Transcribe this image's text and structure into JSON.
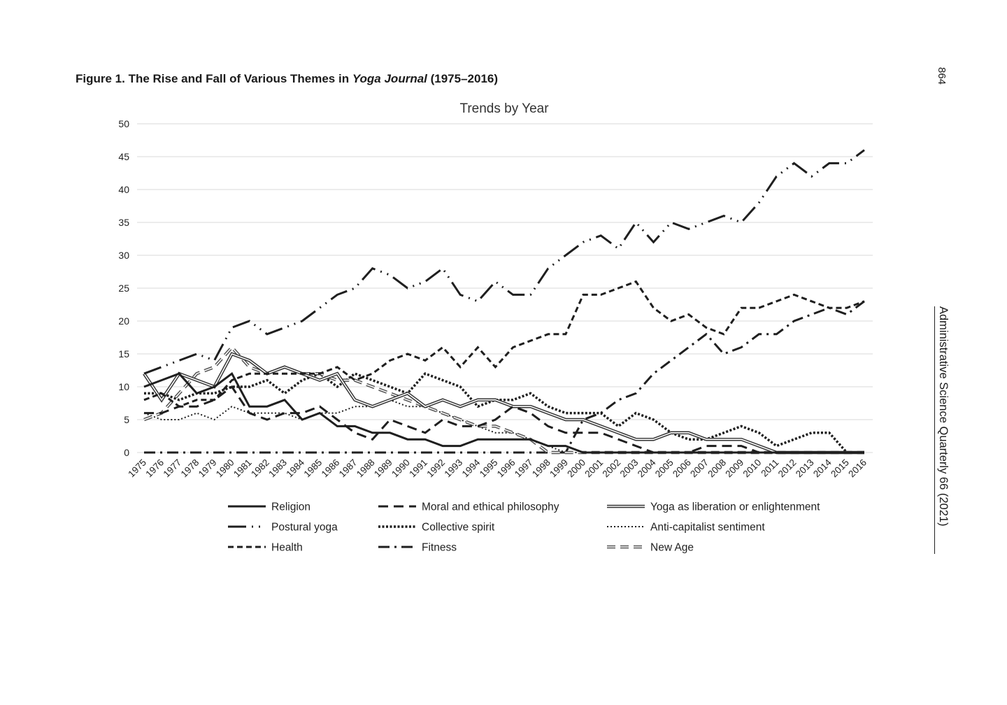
{
  "caption": {
    "prefix": "Figure 1.  The Rise and Fall of Various Themes in ",
    "italic": "Yoga Journal",
    "suffix": " (1975–2016)"
  },
  "side": {
    "page_number": "864",
    "journal": "Administrative Science Quarterly 66 (2021)"
  },
  "chart_data": {
    "type": "line",
    "title": "Trends by Year",
    "xlabel": "",
    "ylabel": "",
    "ylim": [
      0,
      50
    ],
    "yticks": [
      0,
      5,
      10,
      15,
      20,
      25,
      30,
      35,
      40,
      45,
      50
    ],
    "grid": "horizontal",
    "legend_position": "bottom",
    "x": [
      "1975",
      "1976",
      "1977",
      "1978",
      "1979",
      "1980",
      "1981",
      "1982",
      "1983",
      "1984",
      "1985",
      "1986",
      "1987",
      "1988",
      "1989",
      "1990",
      "1991",
      "1992",
      "1993",
      "1994",
      "1995",
      "1996",
      "1997",
      "1998",
      "1999",
      "2000",
      "2001",
      "2002",
      "2003",
      "2004",
      "2005",
      "2006",
      "2007",
      "2008",
      "2009",
      "2010",
      "2011",
      "2012",
      "2013",
      "2014",
      "2015",
      "2016"
    ],
    "series": [
      {
        "name": "Religion",
        "style": "solid",
        "values": [
          10,
          11,
          12,
          9,
          10,
          12,
          7,
          7,
          8,
          5,
          6,
          4,
          4,
          3,
          3,
          2,
          2,
          1,
          1,
          2,
          2,
          2,
          2,
          1,
          1,
          0,
          0,
          0,
          0,
          0,
          0,
          0,
          0,
          0,
          0,
          0,
          0,
          0,
          0,
          0,
          0,
          0
        ]
      },
      {
        "name": "Moral and ethical philosophy",
        "style": "dashed",
        "values": [
          6,
          6,
          7,
          7,
          8,
          10,
          6,
          5,
          6,
          6,
          7,
          5,
          3,
          2,
          5,
          4,
          3,
          5,
          4,
          4,
          5,
          7,
          6,
          4,
          3,
          3,
          3,
          2,
          1,
          0,
          0,
          0,
          1,
          1,
          1,
          0,
          0,
          0,
          0,
          0,
          0,
          0
        ]
      },
      {
        "name": "Yoga as liberation or enlightenment",
        "style": "double",
        "values": [
          12,
          8,
          12,
          11,
          10,
          15,
          14,
          12,
          13,
          12,
          11,
          12,
          8,
          7,
          8,
          9,
          7,
          8,
          7,
          8,
          8,
          7,
          7,
          6,
          5,
          5,
          4,
          3,
          2,
          2,
          3,
          3,
          2,
          2,
          2,
          1,
          0,
          0,
          0,
          0,
          0,
          0
        ]
      },
      {
        "name": "Postural yoga",
        "style": "dashdotdot",
        "values": [
          12,
          13,
          14,
          15,
          14,
          19,
          20,
          18,
          19,
          20,
          22,
          24,
          25,
          28,
          27,
          25,
          26,
          28,
          24,
          23,
          26,
          24,
          24,
          28,
          30,
          32,
          33,
          31,
          35,
          32,
          35,
          34,
          35,
          36,
          35,
          38,
          42,
          44,
          42,
          44,
          44,
          46
        ]
      },
      {
        "name": "Collective spirit",
        "style": "dotted-bold",
        "values": [
          9,
          9,
          8,
          9,
          9,
          10,
          10,
          11,
          9,
          11,
          12,
          10,
          12,
          11,
          10,
          9,
          12,
          11,
          10,
          7,
          8,
          8,
          9,
          7,
          6,
          6,
          6,
          4,
          6,
          5,
          3,
          2,
          2,
          3,
          4,
          3,
          1,
          2,
          3,
          3,
          0,
          0
        ]
      },
      {
        "name": "Anti-capitalist sentiment",
        "style": "dotted",
        "values": [
          6,
          5,
          5,
          6,
          5,
          7,
          6,
          6,
          6,
          5,
          6,
          6,
          7,
          7,
          8,
          7,
          7,
          6,
          5,
          4,
          3,
          3,
          2,
          1,
          0,
          0,
          0,
          0,
          0,
          0,
          0,
          0,
          0,
          0,
          0,
          0,
          0,
          0,
          0,
          0,
          0,
          0
        ]
      },
      {
        "name": "Health",
        "style": "short-dashed",
        "values": [
          8,
          9,
          7,
          8,
          8,
          11,
          12,
          12,
          12,
          12,
          12,
          13,
          11,
          12,
          14,
          15,
          14,
          16,
          13,
          16,
          13,
          16,
          17,
          18,
          18,
          24,
          24,
          25,
          26,
          22,
          20,
          21,
          19,
          18,
          22,
          22,
          23,
          24,
          23,
          22,
          22,
          23
        ]
      },
      {
        "name": "Fitness",
        "style": "dashdot",
        "values": [
          0,
          0,
          0,
          0,
          0,
          0,
          0,
          0,
          0,
          0,
          0,
          0,
          0,
          0,
          0,
          0,
          0,
          0,
          0,
          0,
          0,
          0,
          0,
          0,
          0,
          5,
          6,
          8,
          9,
          12,
          14,
          16,
          18,
          15,
          16,
          18,
          18,
          20,
          21,
          22,
          21,
          23
        ]
      },
      {
        "name": "New Age",
        "style": "double-dashed",
        "values": [
          5,
          6,
          9,
          12,
          13,
          16,
          13,
          12,
          13,
          12,
          12,
          11,
          11,
          10,
          9,
          8,
          7,
          6,
          5,
          4,
          4,
          3,
          2,
          0,
          0,
          0,
          0,
          0,
          0,
          0,
          0,
          0,
          0,
          0,
          0,
          0,
          0,
          0,
          0,
          0,
          0,
          0
        ]
      }
    ]
  }
}
